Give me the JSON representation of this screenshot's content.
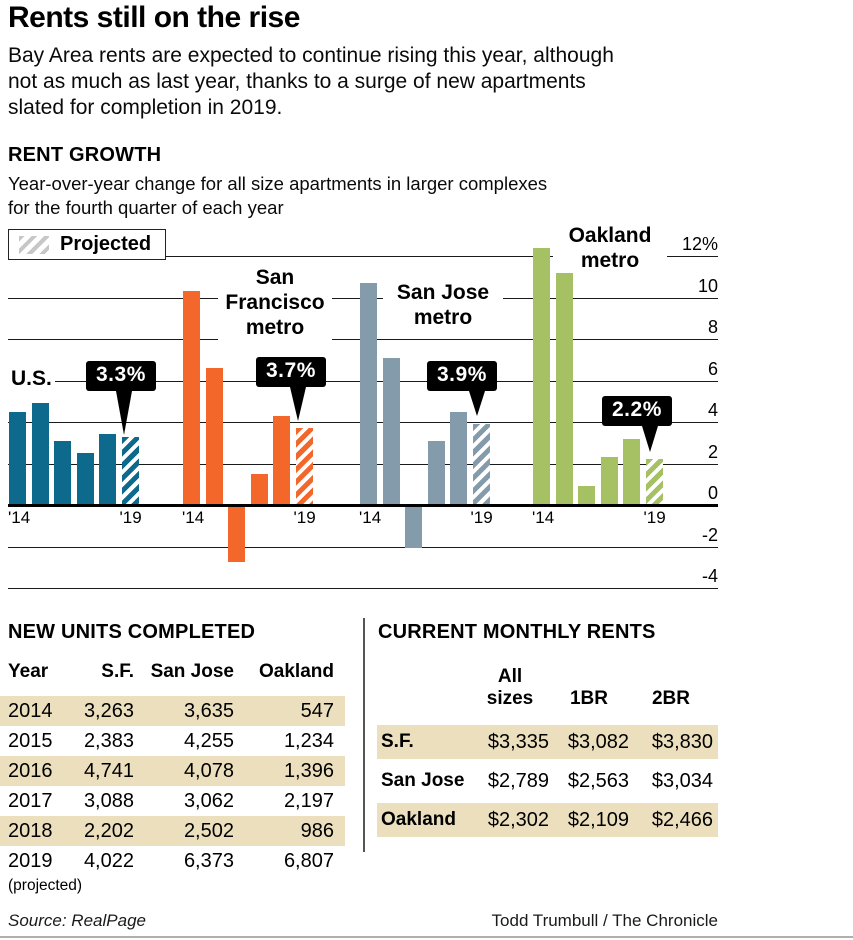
{
  "header": {
    "title": "Rents still on the rise",
    "intro_lines": [
      "Bay Area rents are expected to continue rising this year, although",
      "not as much as last year, thanks to a surge of new apartments",
      "slated for completion in 2019."
    ]
  },
  "chart": {
    "section_title": "RENT GROWTH",
    "subtitle_lines": [
      "Year-over-year change for all size apartments in larger complexes",
      "for the fourth quarter of each year"
    ],
    "legend_label": "Projected",
    "x_tick_first": "'14",
    "x_tick_last": "'19",
    "y_tick_labels": [
      "12%",
      "10",
      "8",
      "6",
      "4",
      "2",
      "0",
      "-2",
      "-4"
    ]
  },
  "chart_data": {
    "type": "bar",
    "title": "RENT GROWTH",
    "categories": [
      "2014",
      "2015",
      "2016",
      "2017",
      "2018",
      "2019 (projected)"
    ],
    "ylim": [
      -4,
      12
    ],
    "gridlines": [
      12,
      10,
      8,
      6,
      4,
      2,
      0,
      -2,
      -4
    ],
    "legend": "Projected (hatched final bar of each group)",
    "series": [
      {
        "name": "U.S.",
        "color": "#0e6a8c",
        "values": [
          4.5,
          4.9,
          3.1,
          2.5,
          3.4,
          3.3
        ],
        "projected_label": "3.3%"
      },
      {
        "name": "San Francisco metro",
        "color": "#f3682a",
        "values": [
          10.3,
          6.6,
          -2.7,
          1.5,
          4.3,
          3.7
        ],
        "projected_label": "3.7%"
      },
      {
        "name": "San Jose metro",
        "color": "#839bab",
        "values": [
          10.7,
          7.1,
          -2.0,
          3.1,
          4.5,
          3.9
        ],
        "projected_label": "3.9%"
      },
      {
        "name": "Oakland metro",
        "color": "#a6c064",
        "values": [
          12.4,
          11.2,
          0.9,
          2.3,
          3.2,
          2.2
        ],
        "projected_label": "2.2%"
      }
    ]
  },
  "units_table": {
    "title": "NEW UNITS COMPLETED",
    "columns": [
      "Year",
      "S.F.",
      "San Jose",
      "Oakland"
    ],
    "rows": [
      [
        "2014",
        "3,263",
        "3,635",
        "547"
      ],
      [
        "2015",
        "2,383",
        "4,255",
        "1,234"
      ],
      [
        "2016",
        "4,741",
        "4,078",
        "1,396"
      ],
      [
        "2017",
        "3,088",
        "3,062",
        "2,197"
      ],
      [
        "2018",
        "2,202",
        "2,502",
        "986"
      ],
      [
        "2019",
        "4,022",
        "6,373",
        "6,807"
      ]
    ],
    "footnote": "(projected)"
  },
  "rents_table": {
    "title": "CURRENT MONTHLY RENTS",
    "columns": [
      "All sizes",
      "1BR",
      "2BR"
    ],
    "rows": [
      [
        "S.F.",
        "$3,335",
        "$3,082",
        "$3,830"
      ],
      [
        "San Jose",
        "$2,789",
        "$2,563",
        "$3,034"
      ],
      [
        "Oakland",
        "$2,302",
        "$2,109",
        "$2,466"
      ]
    ]
  },
  "footer": {
    "source": "Source: RealPage",
    "credit": "Todd Trumbull / The Chronicle"
  }
}
